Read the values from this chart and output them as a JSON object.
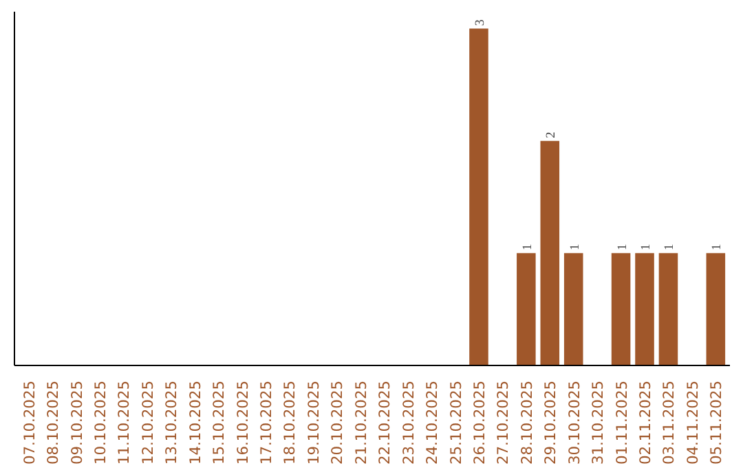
{
  "chart_data": {
    "type": "bar",
    "categories": [
      "07.10.2025",
      "08.10.2025",
      "09.10.2025",
      "10.10.2025",
      "11.10.2025",
      "12.10.2025",
      "13.10.2025",
      "14.10.2025",
      "15.10.2025",
      "16.10.2025",
      "17.10.2025",
      "18.10.2025",
      "19.10.2025",
      "20.10.2025",
      "21.10.2025",
      "22.10.2025",
      "23.10.2025",
      "24.10.2025",
      "25.10.2025",
      "26.10.2025",
      "27.10.2025",
      "28.10.2025",
      "29.10.2025",
      "30.10.2025",
      "31.10.2025",
      "01.11.2025",
      "02.11.2025",
      "03.11.2025",
      "04.11.2025",
      "05.11.2025"
    ],
    "values": [
      null,
      null,
      null,
      null,
      null,
      null,
      null,
      null,
      null,
      null,
      null,
      null,
      null,
      null,
      null,
      null,
      null,
      null,
      null,
      3,
      null,
      1,
      2,
      1,
      null,
      1,
      1,
      1,
      null,
      1
    ],
    "value_labels": [
      null,
      null,
      null,
      null,
      null,
      null,
      null,
      null,
      null,
      null,
      null,
      null,
      null,
      null,
      null,
      null,
      null,
      null,
      null,
      "3",
      null,
      "1",
      "2",
      "1",
      null,
      "1",
      "1",
      "1",
      null,
      "1"
    ],
    "color": "#a0572a",
    "grid": false,
    "tick_labels": "x"
  }
}
